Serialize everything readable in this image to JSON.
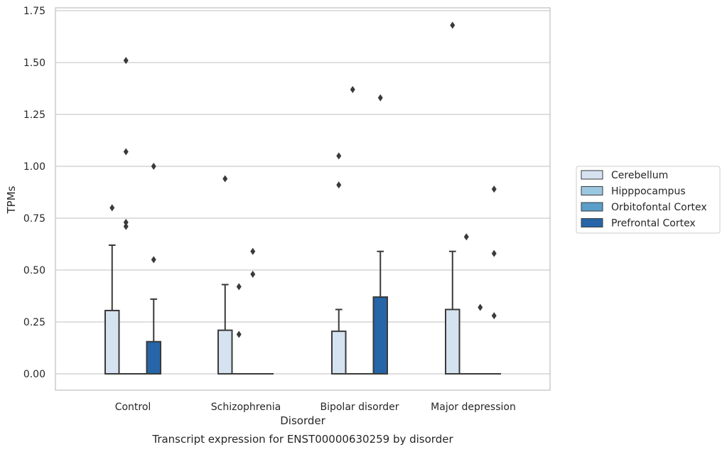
{
  "chart_data": {
    "type": "box",
    "title": "Transcript expression for ENST00000630259 by disorder",
    "xlabel": "Disorder",
    "ylabel": "TPMs",
    "ylim": [
      -0.08,
      1.76
    ],
    "yticks": [
      "0.00",
      "0.25",
      "0.50",
      "0.75",
      "1.00",
      "1.25",
      "1.50",
      "1.75"
    ],
    "categories": [
      "Control",
      "Schizophrenia",
      "Bipolar disorder",
      "Major depression"
    ],
    "grid": "horizontal",
    "legend_position": "right",
    "series": [
      {
        "name": "Cerebellum",
        "color": "#d5e3f1",
        "boxes": [
          {
            "q1": 0,
            "median": 0,
            "q3": 0.305,
            "whisker_low": 0,
            "whisker_high": 0.62,
            "outliers": [
              0.8
            ]
          },
          {
            "q1": 0,
            "median": 0,
            "q3": 0.21,
            "whisker_low": 0,
            "whisker_high": 0.43,
            "outliers": [
              0.94
            ]
          },
          {
            "q1": 0,
            "median": 0,
            "q3": 0.205,
            "whisker_low": 0,
            "whisker_high": 0.31,
            "outliers": [
              0.91,
              1.05
            ]
          },
          {
            "q1": 0,
            "median": 0,
            "q3": 0.31,
            "whisker_low": 0,
            "whisker_high": 0.59,
            "outliers": [
              1.68
            ]
          }
        ]
      },
      {
        "name": "Hipppocampus",
        "color": "#9ac8e0",
        "boxes": [
          {
            "q1": 0,
            "median": 0,
            "q3": 0,
            "whisker_low": 0,
            "whisker_high": 0,
            "outliers": [
              0.71,
              0.73,
              1.07,
              1.51
            ]
          },
          {
            "q1": 0,
            "median": 0,
            "q3": 0,
            "whisker_low": 0,
            "whisker_high": 0,
            "outliers": [
              0.19,
              0.42
            ]
          },
          {
            "q1": 0,
            "median": 0,
            "q3": 0,
            "whisker_low": 0,
            "whisker_high": 0,
            "outliers": [
              1.37
            ]
          },
          {
            "q1": 0,
            "median": 0,
            "q3": 0,
            "whisker_low": 0,
            "whisker_high": 0,
            "outliers": [
              0.66
            ]
          }
        ]
      },
      {
        "name": "Orbitofontal Cortex",
        "color": "#5a9ec9",
        "boxes": [
          {
            "q1": 0,
            "median": 0,
            "q3": 0,
            "whisker_low": 0,
            "whisker_high": 0,
            "outliers": []
          },
          {
            "q1": 0,
            "median": 0,
            "q3": 0,
            "whisker_low": 0,
            "whisker_high": 0,
            "outliers": [
              0.48,
              0.59
            ]
          },
          {
            "q1": 0,
            "median": 0,
            "q3": 0,
            "whisker_low": 0,
            "whisker_high": 0,
            "outliers": []
          },
          {
            "q1": 0,
            "median": 0,
            "q3": 0,
            "whisker_low": 0,
            "whisker_high": 0,
            "outliers": [
              0.32
            ]
          }
        ]
      },
      {
        "name": "Prefrontal Cortex",
        "color": "#2565a8",
        "boxes": [
          {
            "q1": 0,
            "median": 0,
            "q3": 0.155,
            "whisker_low": 0,
            "whisker_high": 0.36,
            "outliers": [
              0.55,
              1.0
            ]
          },
          {
            "q1": 0,
            "median": 0,
            "q3": 0,
            "whisker_low": 0,
            "whisker_high": 0,
            "outliers": []
          },
          {
            "q1": 0,
            "median": 0,
            "q3": 0.37,
            "whisker_low": 0,
            "whisker_high": 0.59,
            "outliers": [
              1.33
            ]
          },
          {
            "q1": 0,
            "median": 0,
            "q3": 0,
            "whisker_low": 0,
            "whisker_high": 0,
            "outliers": [
              0.28,
              0.58,
              0.89
            ]
          }
        ]
      }
    ]
  }
}
